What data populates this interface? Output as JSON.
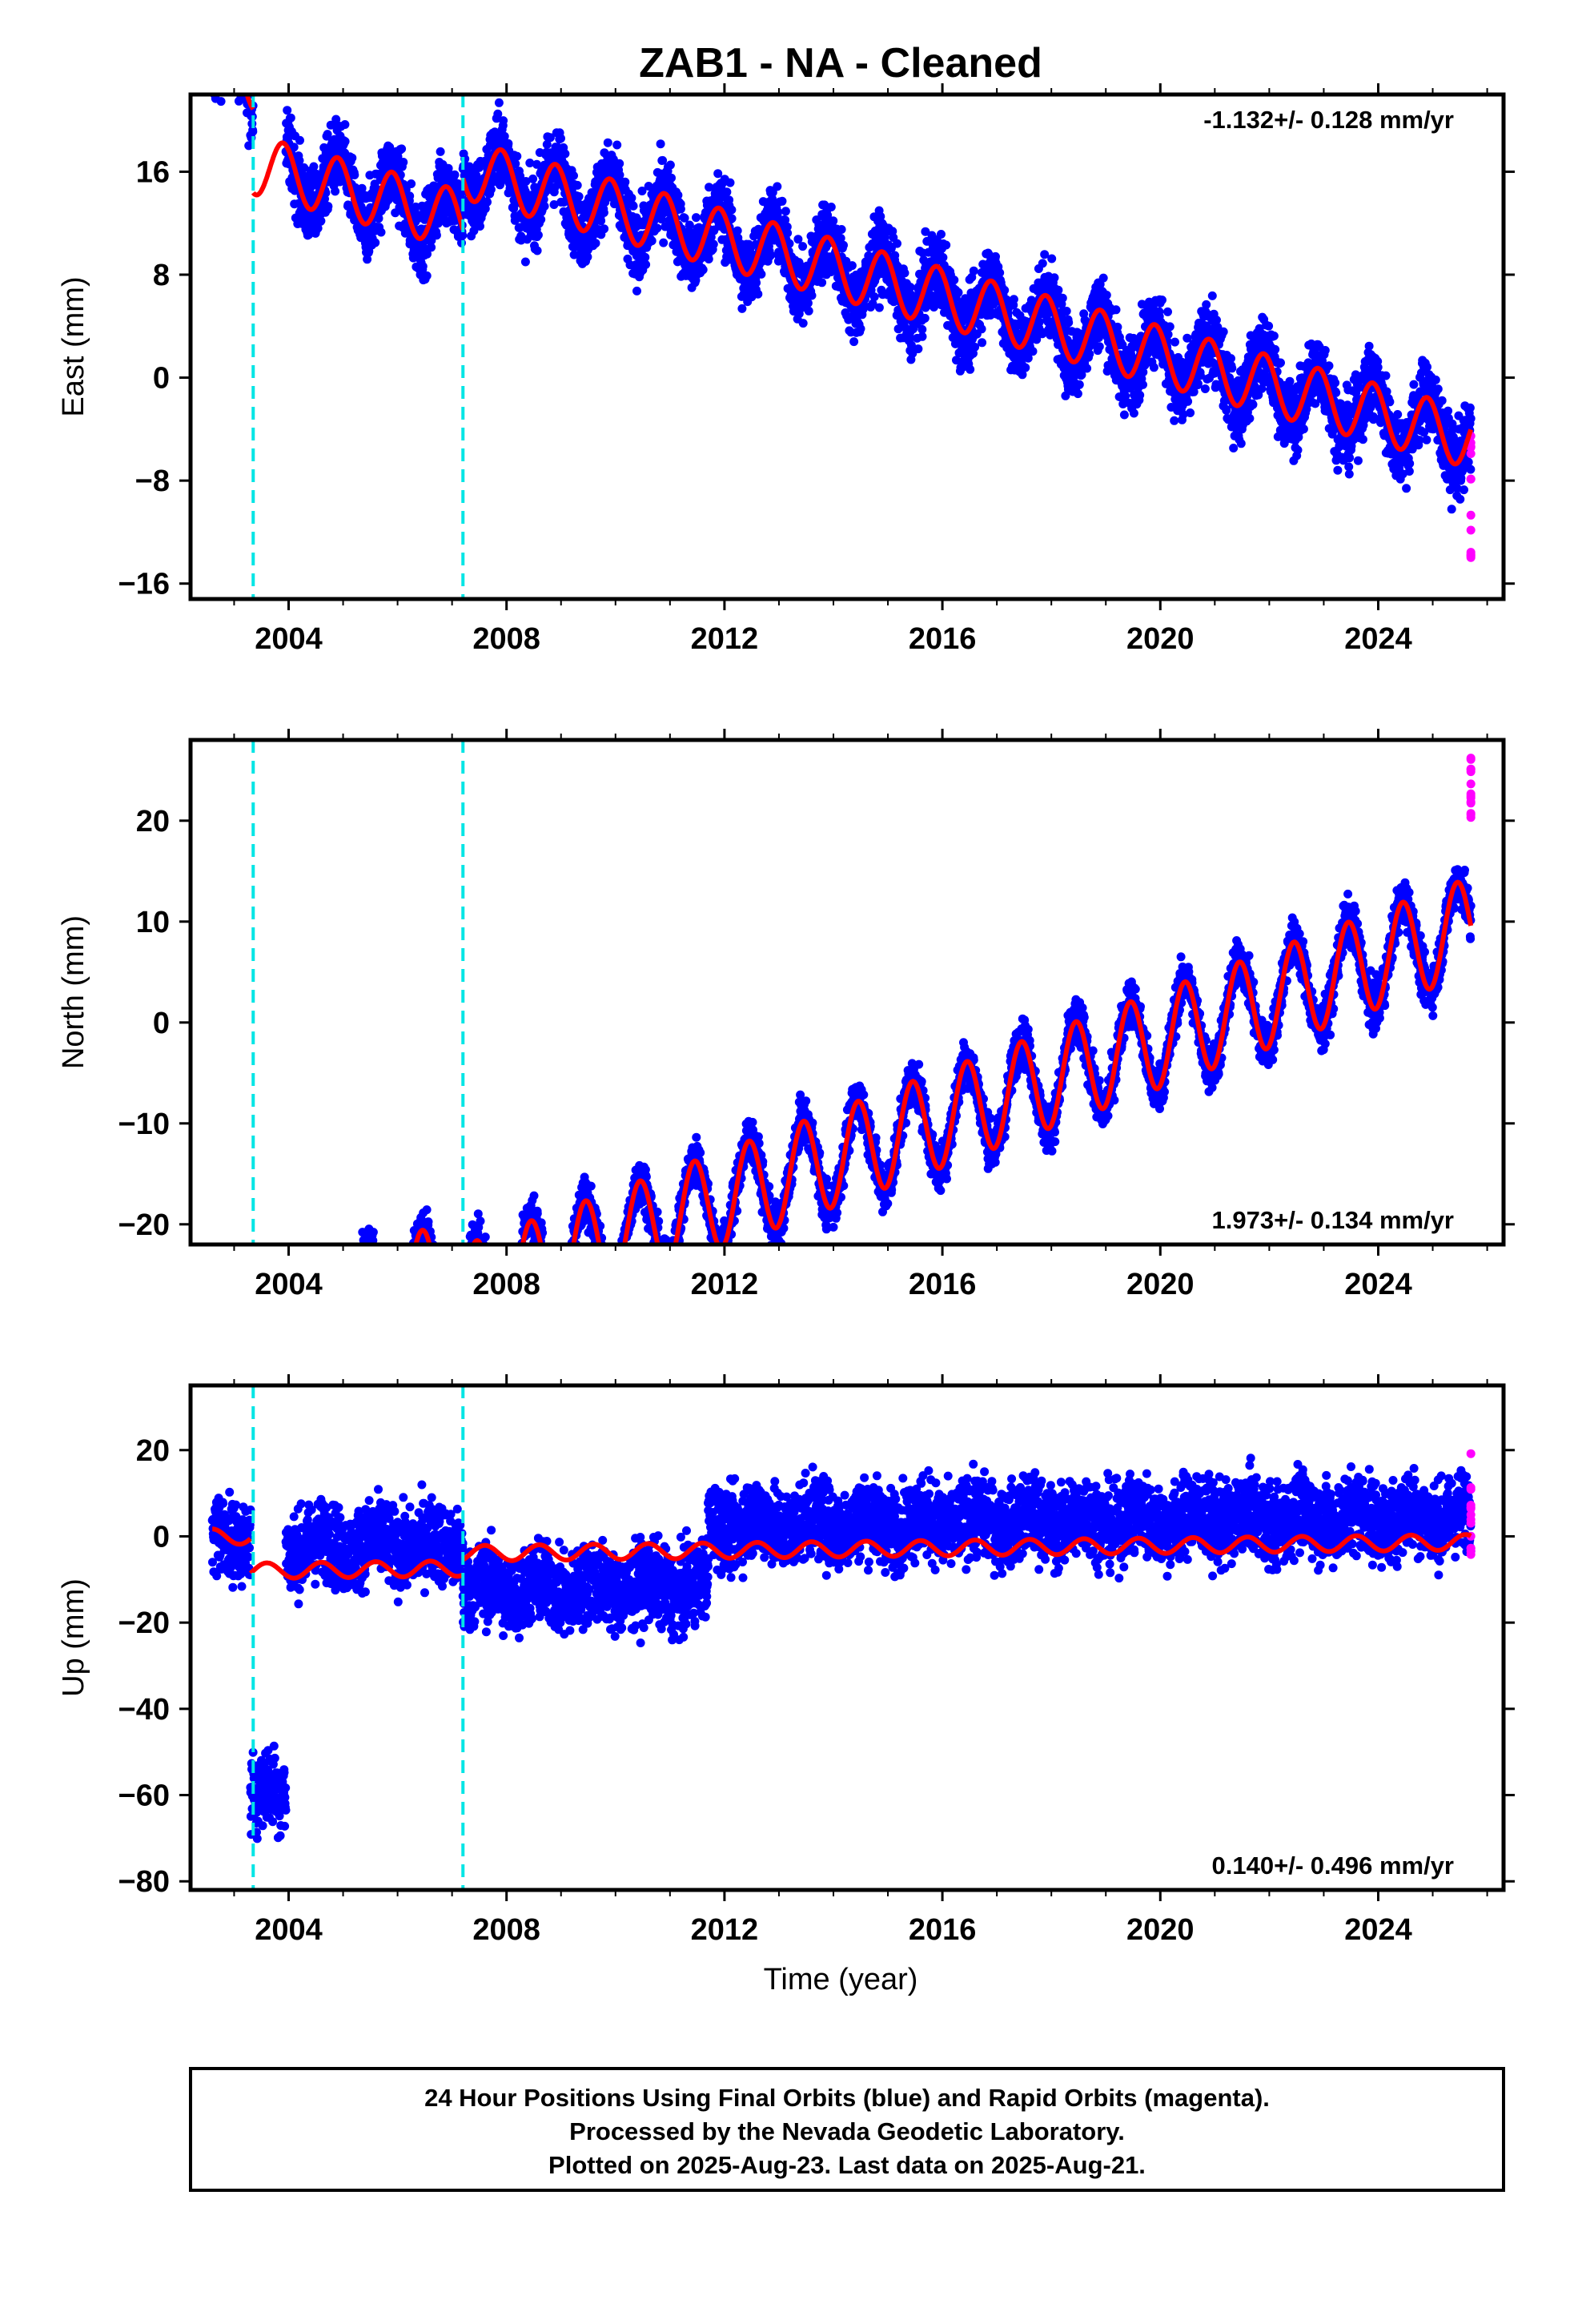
{
  "chart_data": {
    "type": "scatter",
    "title": "ZAB1  - NA - Cleaned",
    "xlabel": "Time (year)",
    "xlim": [
      2002.2,
      2026.3
    ],
    "x_ticks": [
      2004,
      2008,
      2012,
      2016,
      2020,
      2024
    ],
    "offset_epochs": [
      2003.35,
      2007.2
    ],
    "colors": {
      "final_orbits": "#0000ff",
      "rapid_orbits": "#ff00ff",
      "model": "#ff0000",
      "offset_line": "#00e5e5",
      "frame": "#000000"
    },
    "grid": false,
    "panels": [
      {
        "name": "east",
        "ylabel": "East (mm)",
        "ylim": [
          -17.2,
          22
        ],
        "y_ticks": [
          16,
          8,
          0,
          -8,
          -16
        ],
        "rate_text": "-1.132+/- 0.128 mm/yr",
        "rate_position": "top-right",
        "rate": -1.132,
        "annual_amplitude": 2.3,
        "annual_phase_peak": 0.9,
        "segments": [
          {
            "from": 2002.6,
            "to": 2003.35,
            "offset": 11.0
          },
          {
            "from": 2003.35,
            "to": 2003.95,
            "offset": 17.0,
            "model_offset": 4.5
          },
          {
            "from": 2003.95,
            "to": 2007.2,
            "offset": 4.5
          },
          {
            "from": 2007.2,
            "to": 2025.7,
            "offset": 8.5
          }
        ],
        "noise": 2.0,
        "rapid_range": [
          -14,
          -4
        ]
      },
      {
        "name": "north",
        "ylabel": "North (mm)",
        "ylim": [
          -22,
          28
        ],
        "y_ticks": [
          20,
          10,
          0,
          -10,
          -20
        ],
        "rate_text": "1.973+/- 0.134 mm/yr",
        "rate_position": "bottom-right",
        "rate": 1.973,
        "annual_amplitude": 4.8,
        "annual_phase_peak": 0.45,
        "segments": [
          {
            "from": 2002.6,
            "to": 2007.2,
            "offset": -10.5
          },
          {
            "from": 2007.2,
            "to": 2025.7,
            "offset": -13.5
          }
        ],
        "noise": 1.6,
        "rapid_range": [
          20,
          27
        ]
      },
      {
        "name": "up",
        "ylabel": "Up (mm)",
        "ylim": [
          -82,
          35
        ],
        "y_ticks": [
          20,
          0,
          -20,
          -40,
          -60,
          -80
        ],
        "rate_text": "0.140+/- 0.496 mm/yr",
        "rate_position": "bottom-right",
        "rate": 0.14,
        "annual_amplitude": 1.8,
        "annual_phase_peak": 0.6,
        "segments": [
          {
            "from": 2002.6,
            "to": 2003.3,
            "offset": 1.5,
            "model_offset": 1.5
          },
          {
            "from": 2003.3,
            "to": 2003.95,
            "offset": -58.0,
            "model_offset": -6.5
          },
          {
            "from": 2003.95,
            "to": 2007.2,
            "offset": -1.0,
            "model_offset": -6.5
          },
          {
            "from": 2007.2,
            "to": 2011.7,
            "offset": -11.5,
            "model_offset": -3.0
          },
          {
            "from": 2011.7,
            "to": 2025.7,
            "offset": 3.0,
            "model_offset": -3.0
          }
        ],
        "noise": 6.5,
        "rapid_range": [
          -7,
          22
        ]
      }
    ]
  },
  "footer": {
    "line1": "24 Hour Positions Using Final Orbits (blue) and Rapid Orbits (magenta).",
    "line2": "Processed by the Nevada Geodetic Laboratory.",
    "line3": "Plotted on 2025-Aug-23. Last data on 2025-Aug-21."
  }
}
